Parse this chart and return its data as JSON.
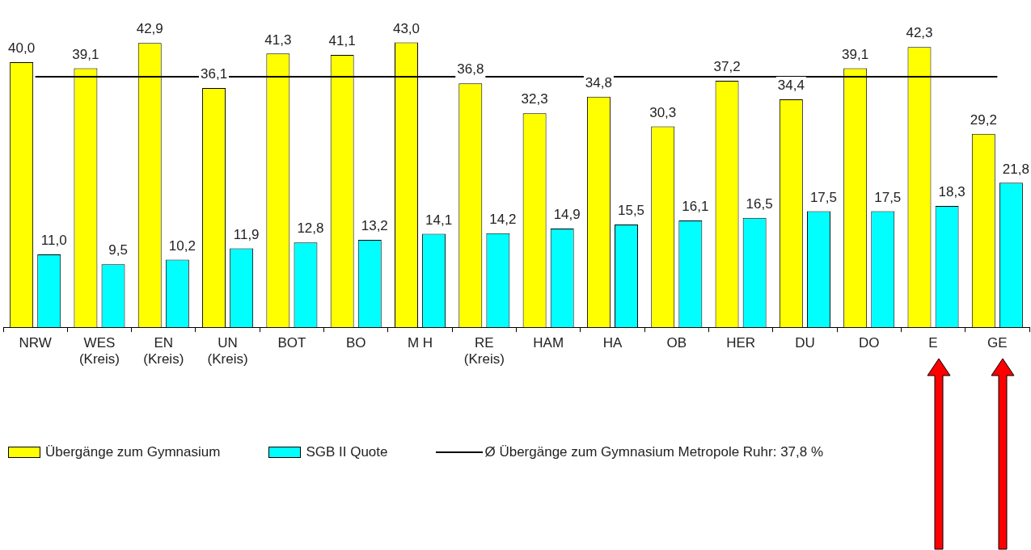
{
  "chart_data": {
    "type": "bar",
    "categories": [
      "NRW",
      "WES (Kreis)",
      "EN (Kreis)",
      "UN (Kreis)",
      "BOT",
      "BO",
      "M H",
      "RE (Kreis)",
      "HAM",
      "HA",
      "OB",
      "HER",
      "DU",
      "DO",
      "E",
      "GE"
    ],
    "series": [
      {
        "name": "Übergänge zum Gymnasium",
        "color": "#ffff00",
        "values": [
          40.0,
          39.1,
          42.9,
          36.1,
          41.3,
          41.1,
          43.0,
          36.8,
          32.3,
          34.8,
          30.3,
          37.2,
          34.4,
          39.1,
          42.3,
          29.2
        ],
        "value_labels": [
          "40,0",
          "39,1",
          "42,9",
          "36,1",
          "41,3",
          "41,1",
          "43,0",
          "36,8",
          "32,3",
          "34,8",
          "30,3",
          "37,2",
          "34,4",
          "39,1",
          "42,3",
          "29,2"
        ]
      },
      {
        "name": "SGB II Quote",
        "color": "#00ffff",
        "values": [
          11.0,
          9.5,
          10.2,
          11.9,
          12.8,
          13.2,
          14.1,
          14.2,
          14.9,
          15.5,
          16.1,
          16.5,
          17.5,
          17.5,
          18.3,
          21.8
        ],
        "value_labels": [
          "11,0",
          "9,5",
          "10,2",
          "11,9",
          "12,8",
          "13,2",
          "14,1",
          "14,2",
          "14,9",
          "15,5",
          "16,1",
          "16,5",
          "17,5",
          "17,5",
          "18,3",
          "21,8"
        ]
      }
    ],
    "ref_lines": [
      {
        "axis": "y",
        "value": 37.8,
        "label": "Ø Übergänge zum Gymnasium Metropole Ruhr: 37,8 %",
        "color": "#000000"
      }
    ],
    "legend": "bottom",
    "grid": false
  }
}
